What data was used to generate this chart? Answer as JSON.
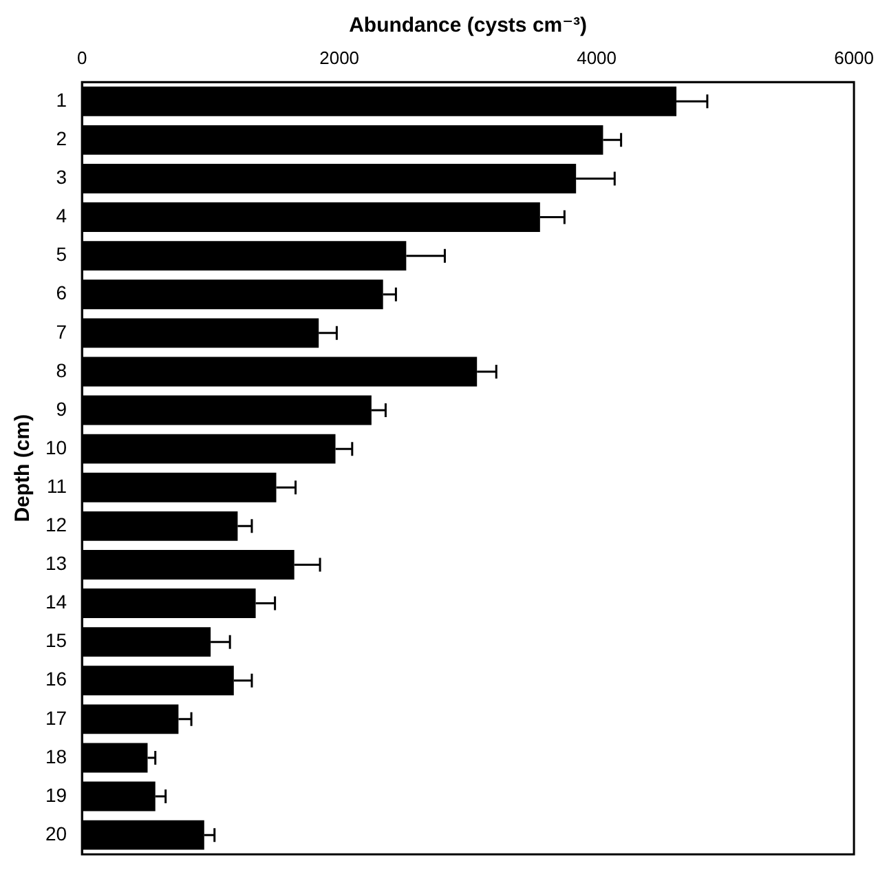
{
  "chart_data": {
    "type": "bar",
    "orientation": "horizontal",
    "xlabel": "Abundance (cysts cm⁻³)",
    "ylabel": "Depth (cm)",
    "categories": [
      "1",
      "2",
      "3",
      "4",
      "5",
      "6",
      "7",
      "8",
      "9",
      "10",
      "11",
      "12",
      "13",
      "14",
      "15",
      "16",
      "17",
      "18",
      "19",
      "20"
    ],
    "values": [
      4620,
      4050,
      3840,
      3560,
      2520,
      2340,
      1840,
      3070,
      2250,
      1970,
      1510,
      1210,
      1650,
      1350,
      1000,
      1180,
      750,
      510,
      570,
      950
    ],
    "errors": [
      [
        4620,
        4860
      ],
      [
        4050,
        4190
      ],
      [
        3840,
        4140
      ],
      [
        3560,
        3750
      ],
      [
        2520,
        2820
      ],
      [
        2340,
        2440
      ],
      [
        1840,
        1980
      ],
      [
        3070,
        3220
      ],
      [
        2250,
        2360
      ],
      [
        1970,
        2100
      ],
      [
        1510,
        1660
      ],
      [
        1210,
        1320
      ],
      [
        1650,
        1850
      ],
      [
        1350,
        1500
      ],
      [
        1000,
        1150
      ],
      [
        1180,
        1320
      ],
      [
        750,
        850
      ],
      [
        510,
        570
      ],
      [
        570,
        650
      ],
      [
        950,
        1030
      ]
    ],
    "color": "#000000",
    "xlim": [
      0,
      6000
    ],
    "xticks": [
      0,
      2000,
      4000,
      6000
    ],
    "grid": false,
    "legend": false
  }
}
